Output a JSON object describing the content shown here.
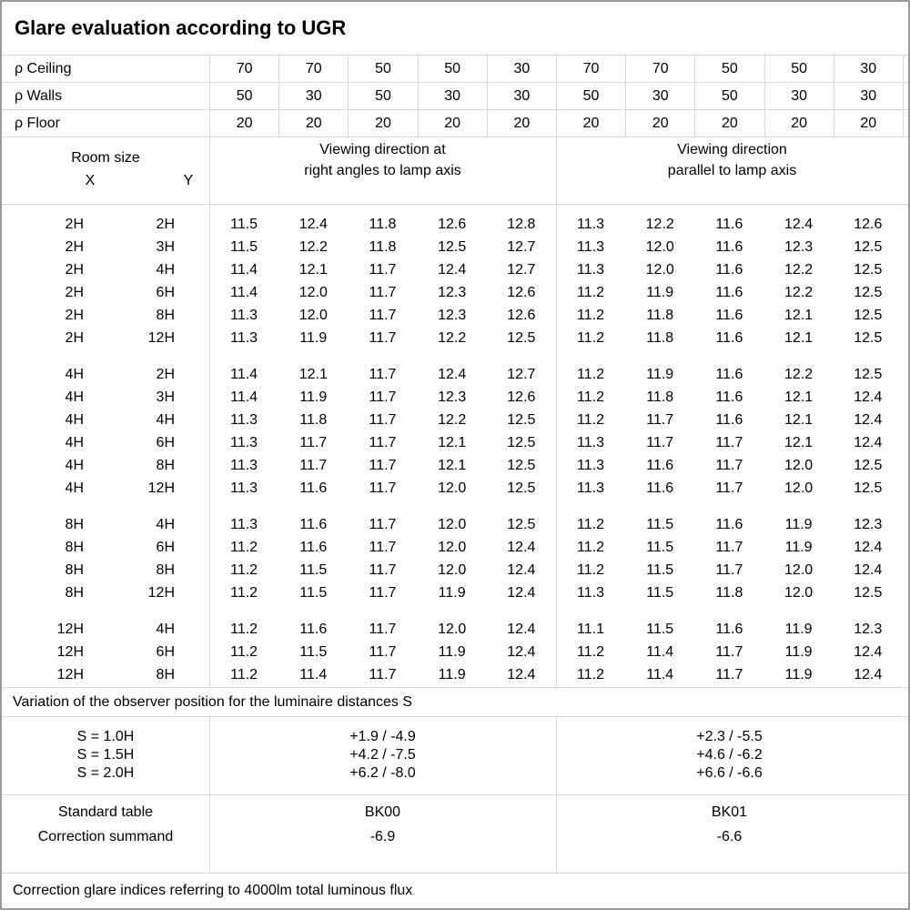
{
  "title": "Glare evaluation according to UGR",
  "reflectance_rows": [
    {
      "label": "ρ Ceiling",
      "values": [
        "70",
        "70",
        "50",
        "50",
        "30",
        "70",
        "70",
        "50",
        "50",
        "30"
      ]
    },
    {
      "label": "ρ Walls",
      "values": [
        "50",
        "30",
        "50",
        "30",
        "30",
        "50",
        "30",
        "50",
        "30",
        "30"
      ]
    },
    {
      "label": "ρ Floor",
      "values": [
        "20",
        "20",
        "20",
        "20",
        "20",
        "20",
        "20",
        "20",
        "20",
        "20"
      ]
    }
  ],
  "header": {
    "room_size_label": "Room size",
    "x_label": "X",
    "y_label": "Y",
    "left_heading_line1": "Viewing direction at",
    "left_heading_line2": "right angles to lamp axis",
    "right_heading_line1": "Viewing direction",
    "right_heading_line2": "parallel to lamp axis"
  },
  "body_groups": [
    {
      "rows": [
        {
          "x": "2H",
          "y": "2H",
          "values": [
            "11.5",
            "12.4",
            "11.8",
            "12.6",
            "12.8",
            "11.3",
            "12.2",
            "11.6",
            "12.4",
            "12.6"
          ]
        },
        {
          "x": "2H",
          "y": "3H",
          "values": [
            "11.5",
            "12.2",
            "11.8",
            "12.5",
            "12.7",
            "11.3",
            "12.0",
            "11.6",
            "12.3",
            "12.5"
          ]
        },
        {
          "x": "2H",
          "y": "4H",
          "values": [
            "11.4",
            "12.1",
            "11.7",
            "12.4",
            "12.7",
            "11.3",
            "12.0",
            "11.6",
            "12.2",
            "12.5"
          ]
        },
        {
          "x": "2H",
          "y": "6H",
          "values": [
            "11.4",
            "12.0",
            "11.7",
            "12.3",
            "12.6",
            "11.2",
            "11.9",
            "11.6",
            "12.2",
            "12.5"
          ]
        },
        {
          "x": "2H",
          "y": "8H",
          "values": [
            "11.3",
            "12.0",
            "11.7",
            "12.3",
            "12.6",
            "11.2",
            "11.8",
            "11.6",
            "12.1",
            "12.5"
          ]
        },
        {
          "x": "2H",
          "y": "12H",
          "values": [
            "11.3",
            "11.9",
            "11.7",
            "12.2",
            "12.5",
            "11.2",
            "11.8",
            "11.6",
            "12.1",
            "12.5"
          ]
        }
      ]
    },
    {
      "rows": [
        {
          "x": "4H",
          "y": "2H",
          "values": [
            "11.4",
            "12.1",
            "11.7",
            "12.4",
            "12.7",
            "11.2",
            "11.9",
            "11.6",
            "12.2",
            "12.5"
          ]
        },
        {
          "x": "4H",
          "y": "3H",
          "values": [
            "11.4",
            "11.9",
            "11.7",
            "12.3",
            "12.6",
            "11.2",
            "11.8",
            "11.6",
            "12.1",
            "12.4"
          ]
        },
        {
          "x": "4H",
          "y": "4H",
          "values": [
            "11.3",
            "11.8",
            "11.7",
            "12.2",
            "12.5",
            "11.2",
            "11.7",
            "11.6",
            "12.1",
            "12.4"
          ]
        },
        {
          "x": "4H",
          "y": "6H",
          "values": [
            "11.3",
            "11.7",
            "11.7",
            "12.1",
            "12.5",
            "11.3",
            "11.7",
            "11.7",
            "12.1",
            "12.4"
          ]
        },
        {
          "x": "4H",
          "y": "8H",
          "values": [
            "11.3",
            "11.7",
            "11.7",
            "12.1",
            "12.5",
            "11.3",
            "11.6",
            "11.7",
            "12.0",
            "12.5"
          ]
        },
        {
          "x": "4H",
          "y": "12H",
          "values": [
            "11.3",
            "11.6",
            "11.7",
            "12.0",
            "12.5",
            "11.3",
            "11.6",
            "11.7",
            "12.0",
            "12.5"
          ]
        }
      ]
    },
    {
      "rows": [
        {
          "x": "8H",
          "y": "4H",
          "values": [
            "11.3",
            "11.6",
            "11.7",
            "12.0",
            "12.5",
            "11.2",
            "11.5",
            "11.6",
            "11.9",
            "12.3"
          ]
        },
        {
          "x": "8H",
          "y": "6H",
          "values": [
            "11.2",
            "11.6",
            "11.7",
            "12.0",
            "12.4",
            "11.2",
            "11.5",
            "11.7",
            "11.9",
            "12.4"
          ]
        },
        {
          "x": "8H",
          "y": "8H",
          "values": [
            "11.2",
            "11.5",
            "11.7",
            "12.0",
            "12.4",
            "11.2",
            "11.5",
            "11.7",
            "12.0",
            "12.4"
          ]
        },
        {
          "x": "8H",
          "y": "12H",
          "values": [
            "11.2",
            "11.5",
            "11.7",
            "11.9",
            "12.4",
            "11.3",
            "11.5",
            "11.8",
            "12.0",
            "12.5"
          ]
        }
      ]
    },
    {
      "rows": [
        {
          "x": "12H",
          "y": "4H",
          "values": [
            "11.2",
            "11.6",
            "11.7",
            "12.0",
            "12.4",
            "11.1",
            "11.5",
            "11.6",
            "11.9",
            "12.3"
          ]
        },
        {
          "x": "12H",
          "y": "6H",
          "values": [
            "11.2",
            "11.5",
            "11.7",
            "11.9",
            "12.4",
            "11.2",
            "11.4",
            "11.7",
            "11.9",
            "12.4"
          ]
        },
        {
          "x": "12H",
          "y": "8H",
          "values": [
            "11.2",
            "11.4",
            "11.7",
            "11.9",
            "12.4",
            "11.2",
            "11.4",
            "11.7",
            "11.9",
            "12.4"
          ]
        }
      ]
    }
  ],
  "variation_note": "Variation of the observer position for the luminaire distances S",
  "variation_rows": [
    {
      "label": "S = 1.0H",
      "left": "+1.9 / -4.9",
      "right": "+2.3 / -5.5"
    },
    {
      "label": "S = 1.5H",
      "left": "+4.2 / -7.5",
      "right": "+4.6 / -6.2"
    },
    {
      "label": "S = 2.0H",
      "left": "+6.2 / -8.0",
      "right": "+6.6 / -6.6"
    }
  ],
  "standard": {
    "labels": [
      "Standard table",
      "Correction summand"
    ],
    "left": [
      "BK00",
      "-6.9"
    ],
    "right": [
      "BK01",
      "-6.6"
    ]
  },
  "footer_note": "Correction glare indices referring to 4000lm total luminous flux"
}
